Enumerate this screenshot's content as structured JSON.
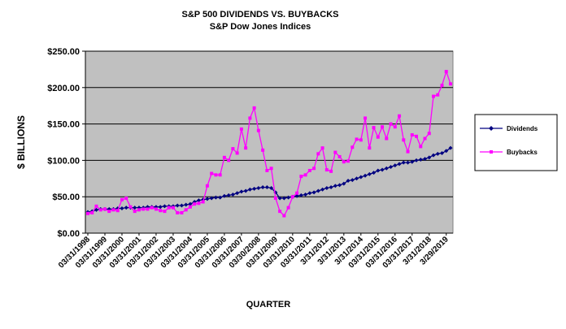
{
  "chart_data": {
    "type": "line",
    "title": "S&P 500 DIVIDENDS  VS. BUYBACKS",
    "subtitle": "S&P Dow Jones Indices",
    "xlabel": "QUARTER",
    "ylabel": "$ BILLIONS",
    "ylim": [
      0,
      250
    ],
    "yticks": [
      "$0.00",
      "$50.00",
      "$100.00",
      "$150.00",
      "$200.00",
      "$250.00"
    ],
    "grid": true,
    "legend_position": "right",
    "x_tick_labels": [
      {
        "q": 0,
        "label": "03/31/1998"
      },
      {
        "q": 4,
        "label": "03/31/1999"
      },
      {
        "q": 8,
        "label": "03/31/2000"
      },
      {
        "q": 12,
        "label": "03/31/2001"
      },
      {
        "q": 16,
        "label": "03/31/2002"
      },
      {
        "q": 20,
        "label": "03/31/2003"
      },
      {
        "q": 24,
        "label": "03/31/2004"
      },
      {
        "q": 28,
        "label": "03/31/2005"
      },
      {
        "q": 32,
        "label": "03/31/2006"
      },
      {
        "q": 36,
        "label": "03/31/2007"
      },
      {
        "q": 40,
        "label": "03/30/2008"
      },
      {
        "q": 44,
        "label": "03/31/2009"
      },
      {
        "q": 48,
        "label": "03/31/2010"
      },
      {
        "q": 52,
        "label": "03/31/2011"
      },
      {
        "q": 56,
        "label": "3/31/2012"
      },
      {
        "q": 60,
        "label": "3/31/2013"
      },
      {
        "q": 64,
        "label": "3/31/2014"
      },
      {
        "q": 68,
        "label": "03/31/2015"
      },
      {
        "q": 72,
        "label": "03/31/2016"
      },
      {
        "q": 76,
        "label": "03/31/2017"
      },
      {
        "q": 80,
        "label": "3/31/2018"
      },
      {
        "q": 84,
        "label": "3/29/2019"
      }
    ],
    "x": [
      0,
      1,
      2,
      3,
      4,
      5,
      6,
      7,
      8,
      9,
      10,
      11,
      12,
      13,
      14,
      15,
      16,
      17,
      18,
      19,
      20,
      21,
      22,
      23,
      24,
      25,
      26,
      27,
      28,
      29,
      30,
      31,
      32,
      33,
      34,
      35,
      36,
      37,
      38,
      39,
      40,
      41,
      42,
      43,
      44,
      45,
      46,
      47,
      48,
      49,
      50,
      51,
      52,
      53,
      54,
      55,
      56,
      57,
      58,
      59,
      60,
      61,
      62,
      63,
      64,
      65,
      66,
      67,
      68,
      69,
      70,
      71,
      72,
      73,
      74,
      75,
      76,
      77,
      78,
      79,
      80,
      81,
      82,
      83,
      84,
      85
    ],
    "series": [
      {
        "name": "Dividends",
        "color": "#000080",
        "marker": "diamond",
        "values": [
          29,
          30,
          32,
          33,
          33,
          33,
          33,
          34,
          34,
          35,
          35,
          35,
          35,
          35,
          36,
          36,
          36,
          36,
          37,
          37,
          37,
          38,
          38,
          39,
          40,
          43,
          45,
          46,
          47,
          48,
          49,
          49,
          51,
          52,
          53,
          55,
          57,
          58,
          60,
          61,
          62,
          63,
          63,
          62,
          56,
          48,
          48,
          49,
          50,
          51,
          52,
          53,
          55,
          56,
          58,
          60,
          62,
          63,
          65,
          66,
          68,
          72,
          73,
          75,
          77,
          79,
          81,
          83,
          86,
          87,
          89,
          91,
          93,
          95,
          97,
          97,
          98,
          100,
          101,
          102,
          104,
          107,
          109,
          110,
          113,
          117
        ]
      },
      {
        "name": "Buybacks",
        "color": "#ff00ff",
        "marker": "square",
        "values": [
          27,
          28,
          37,
          32,
          33,
          30,
          32,
          31,
          46,
          48,
          36,
          30,
          32,
          33,
          33,
          35,
          33,
          31,
          30,
          35,
          35,
          28,
          28,
          32,
          36,
          40,
          41,
          43,
          65,
          82,
          80,
          80,
          104,
          100,
          116,
          110,
          143,
          117,
          158,
          172,
          141,
          114,
          86,
          89,
          48,
          30,
          24,
          35,
          50,
          55,
          78,
          80,
          86,
          89,
          109,
          117,
          87,
          85,
          111,
          105,
          98,
          99,
          118,
          129,
          128,
          158,
          117,
          145,
          132,
          146,
          130,
          150,
          146,
          161,
          128,
          112,
          135,
          133,
          119,
          130,
          137,
          188,
          190,
          203,
          222,
          205
        ]
      }
    ]
  }
}
